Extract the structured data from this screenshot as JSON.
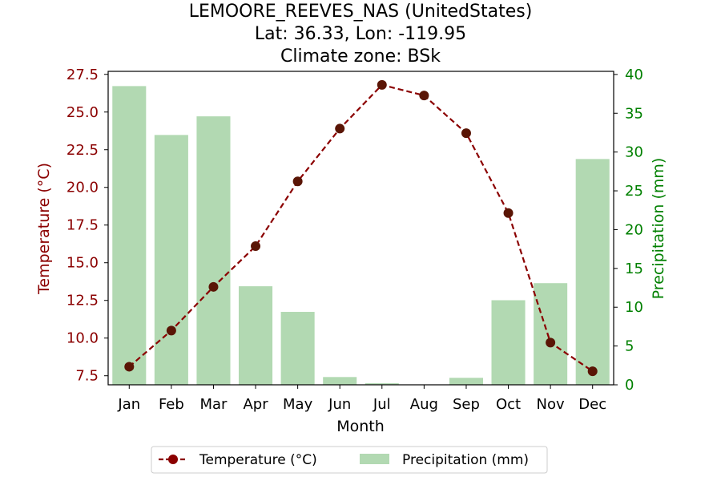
{
  "chart_data": {
    "type": "bar+line",
    "title": [
      "LEMOORE_REEVES_NAS (UnitedStates)",
      "Lat: 36.33, Lon: -119.95",
      "Climate zone: BSk"
    ],
    "xlabel": "Month",
    "categories": [
      "Jan",
      "Feb",
      "Mar",
      "Apr",
      "May",
      "Jun",
      "Jul",
      "Aug",
      "Sep",
      "Oct",
      "Nov",
      "Dec"
    ],
    "series": [
      {
        "name": "Temperature (°C)",
        "axis": "left",
        "type": "line",
        "values": [
          8.1,
          10.5,
          13.4,
          16.1,
          20.4,
          23.9,
          26.8,
          26.1,
          23.6,
          18.3,
          9.7,
          7.8
        ]
      },
      {
        "name": "Precipitation (mm)",
        "axis": "right",
        "type": "bar",
        "values": [
          38.5,
          32.2,
          34.6,
          12.7,
          9.4,
          1.0,
          0.2,
          0.0,
          0.9,
          10.9,
          13.1,
          29.1
        ]
      }
    ],
    "ylabel_left": "Temperature (°C)",
    "ylim_left": [
      6.9,
      27.7
    ],
    "yticks_left": [
      "7.5",
      "10.0",
      "12.5",
      "15.0",
      "17.5",
      "20.0",
      "22.5",
      "25.0",
      "27.5"
    ],
    "ylabel_right": "Precipitation (mm)",
    "ylim_right": [
      0,
      40.4
    ],
    "yticks_right": [
      "0",
      "5",
      "10",
      "15",
      "20",
      "25",
      "30",
      "35",
      "40"
    ],
    "legend": [
      "Temperature (°C)",
      "Precipitation (mm)"
    ],
    "legend_position": "bottom-center",
    "colors": {
      "temperature_line": "#8b0000",
      "temperature_marker": "#5a1505",
      "precipitation_bar": "#b2d9b2",
      "left_axis": "#8b0000",
      "right_axis": "#008000"
    }
  }
}
